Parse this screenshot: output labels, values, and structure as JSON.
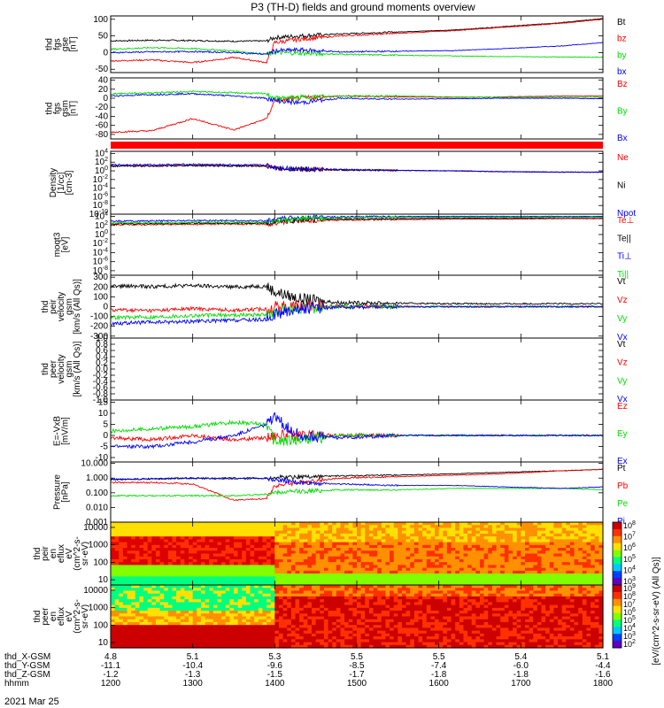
{
  "title": "P3 (TH-D) fields and ground moments overview",
  "date": "2021 Mar 25",
  "time_axis": {
    "hhmm": [
      "1200",
      "1300",
      "1400",
      "1500",
      "1600",
      "1700",
      "1800"
    ],
    "rows": [
      {
        "label": "thd_X-GSM",
        "values": [
          "4.8",
          "5.1",
          "5.3",
          "5.5",
          "5.5",
          "5.4",
          "5.1"
        ]
      },
      {
        "label": "thd_Y-GSM",
        "values": [
          "-11.1",
          "-10.4",
          "-9.6",
          "-8.5",
          "-7.4",
          "-6.0",
          "-4.4"
        ]
      },
      {
        "label": "thd_Z-GSM",
        "values": [
          "-1.2",
          "-1.3",
          "-1.5",
          "-1.7",
          "-1.8",
          "-1.8",
          "-1.6"
        ]
      },
      {
        "label": "hhmm",
        "values": []
      }
    ]
  },
  "colors": {
    "black": "#000000",
    "red": "#ff0000",
    "green": "#00dd00",
    "blue": "#0000ff"
  },
  "chart_data": [
    {
      "type": "line",
      "ylabel": [
        "thd",
        "fgs",
        "gse",
        "[nT]"
      ],
      "yticks": [
        "100",
        "50",
        "0",
        "-50"
      ],
      "ylim": [
        -60,
        110
      ],
      "series": [
        {
          "name": "Bt",
          "color": "black",
          "x": [
            12.0,
            12.5,
            13.0,
            13.5,
            13.9,
            14.0,
            14.3,
            14.8,
            15.5,
            16.2,
            16.8,
            17.5,
            18.0
          ],
          "y": [
            35,
            37,
            36,
            34,
            35,
            45,
            50,
            56,
            62,
            68,
            78,
            90,
            102
          ]
        },
        {
          "name": "bz",
          "color": "red",
          "x": [
            12.0,
            12.5,
            13.0,
            13.5,
            13.9,
            14.0,
            14.3,
            14.8,
            15.5,
            16.2,
            16.8,
            17.5,
            18.0
          ],
          "y": [
            -25,
            -22,
            -30,
            -15,
            -30,
            30,
            40,
            50,
            58,
            66,
            76,
            88,
            100
          ]
        },
        {
          "name": "by",
          "color": "green",
          "x": [
            12.0,
            12.5,
            13.0,
            13.5,
            13.9,
            14.0,
            14.3,
            14.8,
            15.5,
            16.2,
            16.8,
            17.5,
            18.0
          ],
          "y": [
            10,
            15,
            12,
            5,
            -5,
            0,
            -2,
            -5,
            -8,
            -10,
            -12,
            -13,
            -14
          ]
        },
        {
          "name": "bx",
          "color": "blue",
          "x": [
            12.0,
            12.5,
            13.0,
            13.5,
            13.9,
            14.0,
            14.3,
            14.8,
            15.5,
            16.2,
            16.8,
            17.5,
            18.0
          ],
          "y": [
            0,
            2,
            3,
            0,
            -5,
            5,
            8,
            2,
            4,
            6,
            12,
            20,
            30
          ]
        }
      ]
    },
    {
      "type": "line",
      "ylabel": [
        "thd",
        "fgs",
        "gsm",
        "[nT]"
      ],
      "yticks": [
        "40",
        "20",
        "0",
        "-20",
        "-40",
        "-60",
        "-80"
      ],
      "ylim": [
        -90,
        45
      ],
      "series": [
        {
          "name": "Bz",
          "color": "red",
          "x": [
            12.0,
            12.5,
            13.0,
            13.5,
            13.9,
            14.0,
            14.3,
            14.8,
            15.5,
            16.2,
            16.8,
            17.5,
            18.0
          ],
          "y": [
            -75,
            -72,
            -45,
            -70,
            -45,
            -5,
            0,
            5,
            3,
            2,
            3,
            5,
            5
          ]
        },
        {
          "name": "By",
          "color": "green",
          "x": [
            12.0,
            12.5,
            13.0,
            13.5,
            13.9,
            14.0,
            14.3,
            14.8,
            15.5,
            16.2,
            16.8,
            17.5,
            18.0
          ],
          "y": [
            10,
            12,
            15,
            12,
            10,
            0,
            2,
            5,
            5,
            3,
            2,
            2,
            2
          ]
        },
        {
          "name": "Bx",
          "color": "blue",
          "x": [
            12.0,
            12.5,
            13.0,
            13.5,
            13.9,
            14.0,
            14.3,
            14.8,
            15.5,
            16.2,
            16.8,
            17.5,
            18.0
          ],
          "y": [
            5,
            8,
            10,
            5,
            0,
            -5,
            -10,
            0,
            -2,
            -1,
            0,
            0,
            -1
          ]
        }
      ]
    },
    {
      "type": "line",
      "ylabel": [
        "Density",
        "[1/cc]",
        "[cm-3]"
      ],
      "yticks": [
        "10^4",
        "10^2",
        "10^0",
        "10^-2",
        "10^-4",
        "10^-6",
        "10^-8",
        "10^-10"
      ],
      "ylim": [
        -10,
        4.5
      ],
      "scale": "log",
      "series": [
        {
          "name": "Ne",
          "color": "red",
          "x": [
            12.0,
            12.5,
            13.0,
            13.5,
            13.9,
            14.0,
            14.3,
            14.8,
            15.5,
            16.2,
            16.8,
            17.5,
            18.0
          ],
          "y": [
            1.2,
            1.2,
            1.3,
            1.2,
            1.2,
            0.6,
            0.4,
            0.2,
            0.1,
            0.0,
            -0.2,
            -0.3,
            -0.3
          ]
        },
        {
          "name": "Ni",
          "color": "black",
          "x": [
            12.0,
            12.5,
            13.0,
            13.5,
            13.9,
            14.0,
            14.3,
            14.8,
            15.5,
            16.2,
            16.8,
            17.5,
            18.0
          ],
          "y": [
            1.1,
            1.1,
            1.2,
            1.1,
            1.1,
            0.6,
            0.4,
            0.2,
            0.1,
            0.0,
            -0.2,
            -0.3,
            -0.3
          ]
        },
        {
          "name": "Npot",
          "color": "blue",
          "x": [
            12.0,
            12.5,
            13.0,
            13.5,
            13.9,
            14.0,
            14.3,
            14.8,
            15.5,
            16.2,
            16.8,
            17.5,
            18.0
          ],
          "y": [
            1.4,
            1.4,
            1.5,
            1.4,
            1.3,
            0.8,
            0.5,
            0.3,
            0.1,
            0.0,
            -0.2,
            -0.3,
            -0.3
          ]
        }
      ]
    },
    {
      "type": "line",
      "ylabel": [
        "moqt3",
        "[eV]"
      ],
      "yticks": [
        "10^4",
        "10^2",
        "10^0",
        "10^-2",
        "10^-4",
        "10^-6",
        "10^-8"
      ],
      "ylim": [
        -9,
        4.5
      ],
      "scale": "log",
      "series": [
        {
          "name": "Te⊥",
          "color": "red",
          "x": [
            12.0,
            12.5,
            13.0,
            13.5,
            13.9,
            14.0,
            14.3,
            14.8,
            15.5,
            16.2,
            16.8,
            17.5,
            18.0
          ],
          "y": [
            2.2,
            2.2,
            2.3,
            2.3,
            2.3,
            2.5,
            3.0,
            3.2,
            3.3,
            3.4,
            3.4,
            3.5,
            3.5
          ]
        },
        {
          "name": "Te||",
          "color": "black",
          "x": [
            12.0,
            12.5,
            13.0,
            13.5,
            13.9,
            14.0,
            14.3,
            14.8,
            15.5,
            16.2,
            16.8,
            17.5,
            18.0
          ],
          "y": [
            2.4,
            2.4,
            2.5,
            2.5,
            2.5,
            2.8,
            3.2,
            3.4,
            3.5,
            3.6,
            3.6,
            3.7,
            3.7
          ]
        },
        {
          "name": "Ti⊥",
          "color": "blue",
          "x": [
            12.0,
            12.5,
            13.0,
            13.5,
            13.9,
            14.0,
            14.3,
            14.8,
            15.5,
            16.2,
            16.8,
            17.5,
            18.0
          ],
          "y": [
            3.0,
            3.0,
            3.1,
            3.1,
            3.0,
            3.3,
            3.8,
            3.9,
            4.0,
            4.0,
            4.0,
            4.0,
            4.0
          ]
        },
        {
          "name": "Ti||",
          "color": "green",
          "x": [
            12.0,
            12.5,
            13.0,
            13.5,
            13.9,
            14.0,
            14.3,
            14.8,
            15.5,
            16.2,
            16.8,
            17.5,
            18.0
          ],
          "y": [
            2.6,
            2.6,
            2.7,
            2.7,
            2.7,
            3.0,
            3.5,
            3.7,
            3.8,
            3.8,
            3.8,
            3.8,
            3.8
          ]
        }
      ]
    },
    {
      "type": "line",
      "ylabel": [
        "thd",
        "peir",
        "velocity",
        "gsm",
        "[km/s (All Qs)]"
      ],
      "yticks": [
        "300",
        "200",
        "100",
        "0",
        "-100",
        "-200",
        "-300"
      ],
      "ylim": [
        -320,
        320
      ],
      "series": [
        {
          "name": "Vt",
          "color": "black",
          "x": [
            12.0,
            12.5,
            13.0,
            13.5,
            13.9,
            14.0,
            14.3,
            14.8,
            15.5,
            16.2,
            16.8,
            17.5,
            18.0
          ],
          "y": [
            210,
            205,
            215,
            200,
            210,
            150,
            80,
            40,
            35,
            30,
            30,
            30,
            30
          ]
        },
        {
          "name": "Vz",
          "color": "red",
          "x": [
            12.0,
            12.5,
            13.0,
            13.5,
            13.9,
            14.0,
            14.3,
            14.8,
            15.5,
            16.2,
            16.8,
            17.5,
            18.0
          ],
          "y": [
            -30,
            -40,
            -20,
            -35,
            -25,
            0,
            10,
            5,
            0,
            0,
            0,
            0,
            0
          ]
        },
        {
          "name": "Vy",
          "color": "green",
          "x": [
            12.0,
            12.5,
            13.0,
            13.5,
            13.9,
            14.0,
            14.3,
            14.8,
            15.5,
            16.2,
            16.8,
            17.5,
            18.0
          ],
          "y": [
            -110,
            -105,
            -90,
            -85,
            -80,
            -60,
            -20,
            0,
            0,
            0,
            0,
            0,
            0
          ]
        },
        {
          "name": "Vx",
          "color": "blue",
          "x": [
            12.0,
            12.5,
            13.0,
            13.5,
            13.9,
            14.0,
            14.3,
            14.8,
            15.5,
            16.2,
            16.8,
            17.5,
            18.0
          ],
          "y": [
            -170,
            -160,
            -150,
            -140,
            -130,
            -80,
            -20,
            -5,
            0,
            0,
            0,
            0,
            0
          ]
        }
      ]
    },
    {
      "type": "line",
      "ylabel": [
        "thd",
        "peer",
        "velocity",
        "gsm",
        "[km/s (All Qs)]"
      ],
      "yticks": [
        "1.0",
        "0.8",
        "0.6",
        "0.4",
        "0.2",
        "0.0",
        "-0.2",
        "-0.4",
        "-0.6",
        "-0.8",
        "-1.0"
      ],
      "ylim": [
        -1.0,
        1.0
      ],
      "series": [
        {
          "name": "Vt",
          "color": "black",
          "x": [],
          "y": []
        },
        {
          "name": "Vz",
          "color": "red",
          "x": [],
          "y": []
        },
        {
          "name": "Vy",
          "color": "green",
          "x": [],
          "y": []
        },
        {
          "name": "Vx",
          "color": "blue",
          "x": [],
          "y": []
        }
      ]
    },
    {
      "type": "line",
      "ylabel": [
        "E=-VxB",
        "[mV/m]"
      ],
      "yticks": [
        "15",
        "10",
        "5",
        "0",
        "-5",
        "-10"
      ],
      "ylim": [
        -12,
        16
      ],
      "series": [
        {
          "name": "Ez",
          "color": "red",
          "x": [
            12.0,
            12.5,
            13.0,
            13.5,
            13.9,
            14.0,
            14.3,
            14.8,
            15.5,
            16.2,
            16.8,
            17.5,
            18.0
          ],
          "y": [
            -1,
            -2,
            0,
            -2,
            -1,
            0,
            0,
            0,
            0,
            0,
            0,
            0,
            0
          ]
        },
        {
          "name": "Ey",
          "color": "green",
          "x": [
            12.0,
            12.5,
            13.0,
            13.5,
            13.9,
            14.0,
            14.3,
            14.8,
            15.5,
            16.2,
            16.8,
            17.5,
            18.0
          ],
          "y": [
            2,
            3,
            4,
            6,
            5,
            -3,
            -2,
            0,
            0,
            0,
            0,
            0,
            0
          ]
        },
        {
          "name": "Ex",
          "color": "blue",
          "x": [
            12.0,
            12.5,
            13.0,
            13.5,
            13.9,
            14.0,
            14.3,
            14.8,
            15.5,
            16.2,
            16.8,
            17.5,
            18.0
          ],
          "y": [
            -5,
            -5,
            -3,
            0,
            5,
            8,
            0,
            -1,
            0,
            0,
            0,
            0,
            0
          ]
        }
      ]
    },
    {
      "type": "line",
      "ylabel": [
        "Pressure",
        "[nPa]"
      ],
      "yticks": [
        "10.000",
        "1.000",
        "0.100",
        "0.010",
        "0.001"
      ],
      "ylim": [
        -3,
        1.1
      ],
      "scale": "log",
      "series": [
        {
          "name": "Pt",
          "color": "black",
          "x": [
            12.0,
            12.5,
            13.0,
            13.5,
            13.9,
            14.0,
            14.3,
            14.8,
            15.5,
            16.2,
            16.8,
            17.5,
            18.0
          ],
          "y": [
            -0.1,
            -0.05,
            0,
            -0.05,
            0,
            0.05,
            0.1,
            0.15,
            0.2,
            0.3,
            0.4,
            0.5,
            0.6
          ]
        },
        {
          "name": "Pb",
          "color": "red",
          "x": [
            12.0,
            12.5,
            13.0,
            13.5,
            13.9,
            14.0,
            14.3,
            14.8,
            15.5,
            16.2,
            16.8,
            17.5,
            18.0
          ],
          "y": [
            -0.3,
            -0.3,
            -0.4,
            -1.5,
            -1.4,
            -0.5,
            -0.3,
            0.0,
            0.1,
            0.2,
            0.3,
            0.5,
            0.6
          ]
        },
        {
          "name": "Pe",
          "color": "green",
          "x": [
            12.0,
            12.5,
            13.0,
            13.5,
            13.9,
            14.0,
            14.3,
            14.8,
            15.5,
            16.2,
            16.8,
            17.5,
            18.0
          ],
          "y": [
            -1.2,
            -1.2,
            -1.2,
            -1.2,
            -1.1,
            -1.0,
            -0.9,
            -0.8,
            -0.8,
            -0.7,
            -0.7,
            -0.7,
            -0.8
          ]
        },
        {
          "name": "Pi",
          "color": "blue",
          "x": [
            12.0,
            12.5,
            13.0,
            13.5,
            13.9,
            14.0,
            14.3,
            14.8,
            15.5,
            16.2,
            16.8,
            17.5,
            18.0
          ],
          "y": [
            -0.1,
            -0.05,
            0,
            0,
            0,
            -0.1,
            -0.3,
            -0.4,
            -0.5,
            -0.5,
            -0.6,
            -0.7,
            -0.6
          ]
        }
      ]
    },
    {
      "type": "heatmap",
      "ylabel": [
        "thd",
        "peir",
        "en",
        "eflux",
        "eV",
        "(cm^2-s-",
        "sr-eV)"
      ],
      "yticks": [
        "10000",
        "1000",
        "100",
        "10"
      ],
      "ylim": [
        5,
        20000
      ],
      "scale": "log",
      "colorbar": {
        "ticks": [
          "10^8",
          "10^7",
          "10^6",
          "10^5",
          "10^4",
          "10^3"
        ],
        "label": "[eV/(cm^2-s-sr-eV) (All Qs)]"
      }
    },
    {
      "type": "heatmap",
      "ylabel": [
        "thd",
        "peer",
        "en",
        "eflux",
        "eV",
        "(cm^2-s-",
        "sr-eV)"
      ],
      "yticks": [
        "10000",
        "1000",
        "100",
        "10"
      ],
      "ylim": [
        5,
        20000
      ],
      "scale": "log",
      "colorbar": {
        "ticks": [
          "10^9",
          "10^8",
          "10^7",
          "10^6",
          "10^5",
          "10^4",
          "10^3",
          "10^2"
        ],
        "label": "[eV/(cm^2-s-sr-eV) (All Qs)]"
      }
    }
  ]
}
